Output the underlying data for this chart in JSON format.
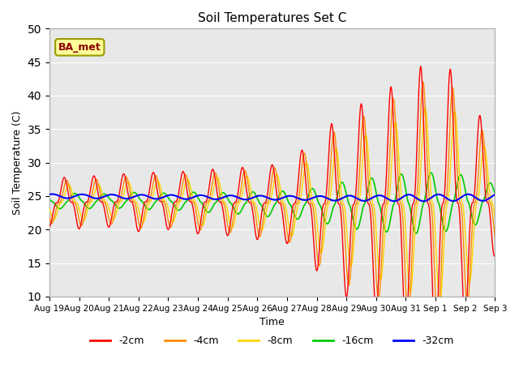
{
  "title": "Soil Temperatures Set C",
  "xlabel": "Time",
  "ylabel": "Soil Temperature (C)",
  "ylim": [
    10,
    50
  ],
  "yticks": [
    10,
    15,
    20,
    25,
    30,
    35,
    40,
    45,
    50
  ],
  "colors": {
    "-2cm": "#FF0000",
    "-4cm": "#FF8C00",
    "-8cm": "#FFD700",
    "-16cm": "#00CC00",
    "-32cm": "#0000FF"
  },
  "legend_labels": [
    "-2cm",
    "-4cm",
    "-8cm",
    "-16cm",
    "-32cm"
  ],
  "annotation_text": "BA_met",
  "annotation_box_color": "#FFFF99",
  "annotation_border_color": "#999900",
  "background_color": "#E8E8E8",
  "xtick_labels": [
    "Aug 19",
    "Aug 20",
    "Aug 21",
    "Aug 22",
    "Aug 23",
    "Aug 24",
    "Aug 25",
    "Aug 26",
    "Aug 27",
    "Aug 28",
    "Aug 29",
    "Aug 30",
    "Aug 31",
    "Sep 1",
    "Sep 2",
    "Sep 3"
  ],
  "n_days": 16,
  "points_per_day": 48
}
